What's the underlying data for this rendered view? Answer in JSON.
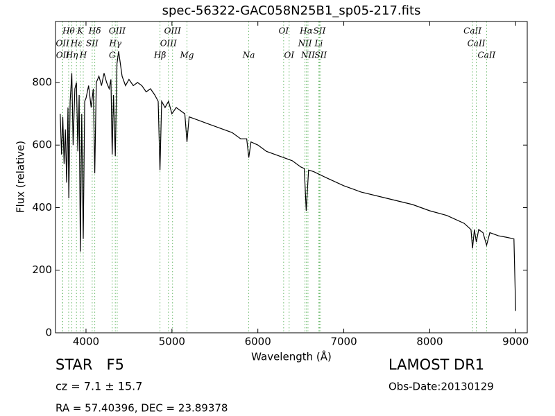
{
  "chart_data": {
    "type": "line",
    "title": "spec-56322-GAC058N25B1_sp05-217.fits",
    "x_label": "Wavelength (Å)",
    "y_label": "Flux (relative)",
    "xlim": [
      3645,
      9135
    ],
    "ylim": [
      0,
      995
    ],
    "xticks": [
      4000,
      5000,
      6000,
      7000,
      8000,
      9000
    ],
    "yticks": [
      0,
      200,
      400,
      600,
      800
    ],
    "grid": false,
    "series": [
      {
        "name": "flux",
        "color": "#000000",
        "x": [
          3700,
          3715,
          3730,
          3745,
          3760,
          3775,
          3790,
          3800,
          3815,
          3835,
          3850,
          3870,
          3889,
          3905,
          3920,
          3934,
          3950,
          3968,
          3985,
          4000,
          4030,
          4060,
          4085,
          4102,
          4120,
          4150,
          4180,
          4210,
          4240,
          4270,
          4290,
          4305,
          4320,
          4341,
          4360,
          4380,
          4420,
          4460,
          4500,
          4550,
          4600,
          4650,
          4700,
          4750,
          4800,
          4840,
          4861,
          4880,
          4920,
          4960,
          5000,
          5050,
          5100,
          5150,
          5175,
          5200,
          5300,
          5400,
          5500,
          5600,
          5700,
          5800,
          5870,
          5894,
          5920,
          6000,
          6100,
          6200,
          6300,
          6400,
          6500,
          6540,
          6563,
          6590,
          6650,
          6800,
          7000,
          7200,
          7500,
          7800,
          8000,
          8200,
          8400,
          8480,
          8498,
          8520,
          8542,
          8570,
          8620,
          8662,
          8700,
          8800,
          8900,
          8980,
          9000
        ],
        "values": [
          700,
          570,
          690,
          540,
          650,
          480,
          720,
          430,
          740,
          830,
          600,
          780,
          800,
          580,
          760,
          260,
          700,
          300,
          740,
          750,
          790,
          720,
          780,
          510,
          800,
          820,
          790,
          830,
          800,
          780,
          810,
          570,
          760,
          565,
          860,
          900,
          820,
          790,
          810,
          790,
          800,
          790,
          770,
          780,
          760,
          740,
          520,
          740,
          720,
          740,
          700,
          720,
          710,
          700,
          610,
          690,
          680,
          670,
          660,
          650,
          640,
          620,
          620,
          560,
          610,
          600,
          580,
          570,
          560,
          550,
          530,
          525,
          390,
          520,
          515,
          495,
          470,
          450,
          430,
          410,
          390,
          375,
          350,
          330,
          270,
          330,
          290,
          330,
          320,
          280,
          320,
          310,
          305,
          300,
          70
        ]
      }
    ],
    "line_color": "#6ab96a",
    "spectral_lines": [
      {
        "label": "OII",
        "x": 3727
      },
      {
        "label": "OII",
        "x": 3729
      },
      {
        "label": "Hθ",
        "x": 3798
      },
      {
        "label": "Hη",
        "x": 3835
      },
      {
        "label": "Hε",
        "x": 3889
      },
      {
        "label": "K",
        "x": 3934
      },
      {
        "label": "H",
        "x": 3968
      },
      {
        "label": "SII",
        "x": 4072
      },
      {
        "label": "Hδ",
        "x": 4102
      },
      {
        "label": "G",
        "x": 4305
      },
      {
        "label": "Hγ",
        "x": 4341
      },
      {
        "label": "OIII",
        "x": 4363
      },
      {
        "label": "Hβ",
        "x": 4861
      },
      {
        "label": "OIII",
        "x": 4959
      },
      {
        "label": "OIII",
        "x": 5007
      },
      {
        "label": "Mg",
        "x": 5175
      },
      {
        "label": "Na",
        "x": 5894
      },
      {
        "label": "OI",
        "x": 6300
      },
      {
        "label": "OI",
        "x": 6364
      },
      {
        "label": "NII",
        "x": 6548
      },
      {
        "label": "Hα",
        "x": 6563
      },
      {
        "label": "NII",
        "x": 6583
      },
      {
        "label": "Li",
        "x": 6708
      },
      {
        "label": "SII",
        "x": 6717
      },
      {
        "label": "SII",
        "x": 6731
      },
      {
        "label": "CaII",
        "x": 8498
      },
      {
        "label": "CaII",
        "x": 8542
      },
      {
        "label": "CaII",
        "x": 8662
      }
    ],
    "object_class": "STAR   F5",
    "redshift": "cz = 7.1 ± 15.7",
    "coordinates": "RA = 57.40396, DEC = 23.89378",
    "survey": "LAMOST DR1",
    "obs_date": "Obs-Date:20130129"
  }
}
